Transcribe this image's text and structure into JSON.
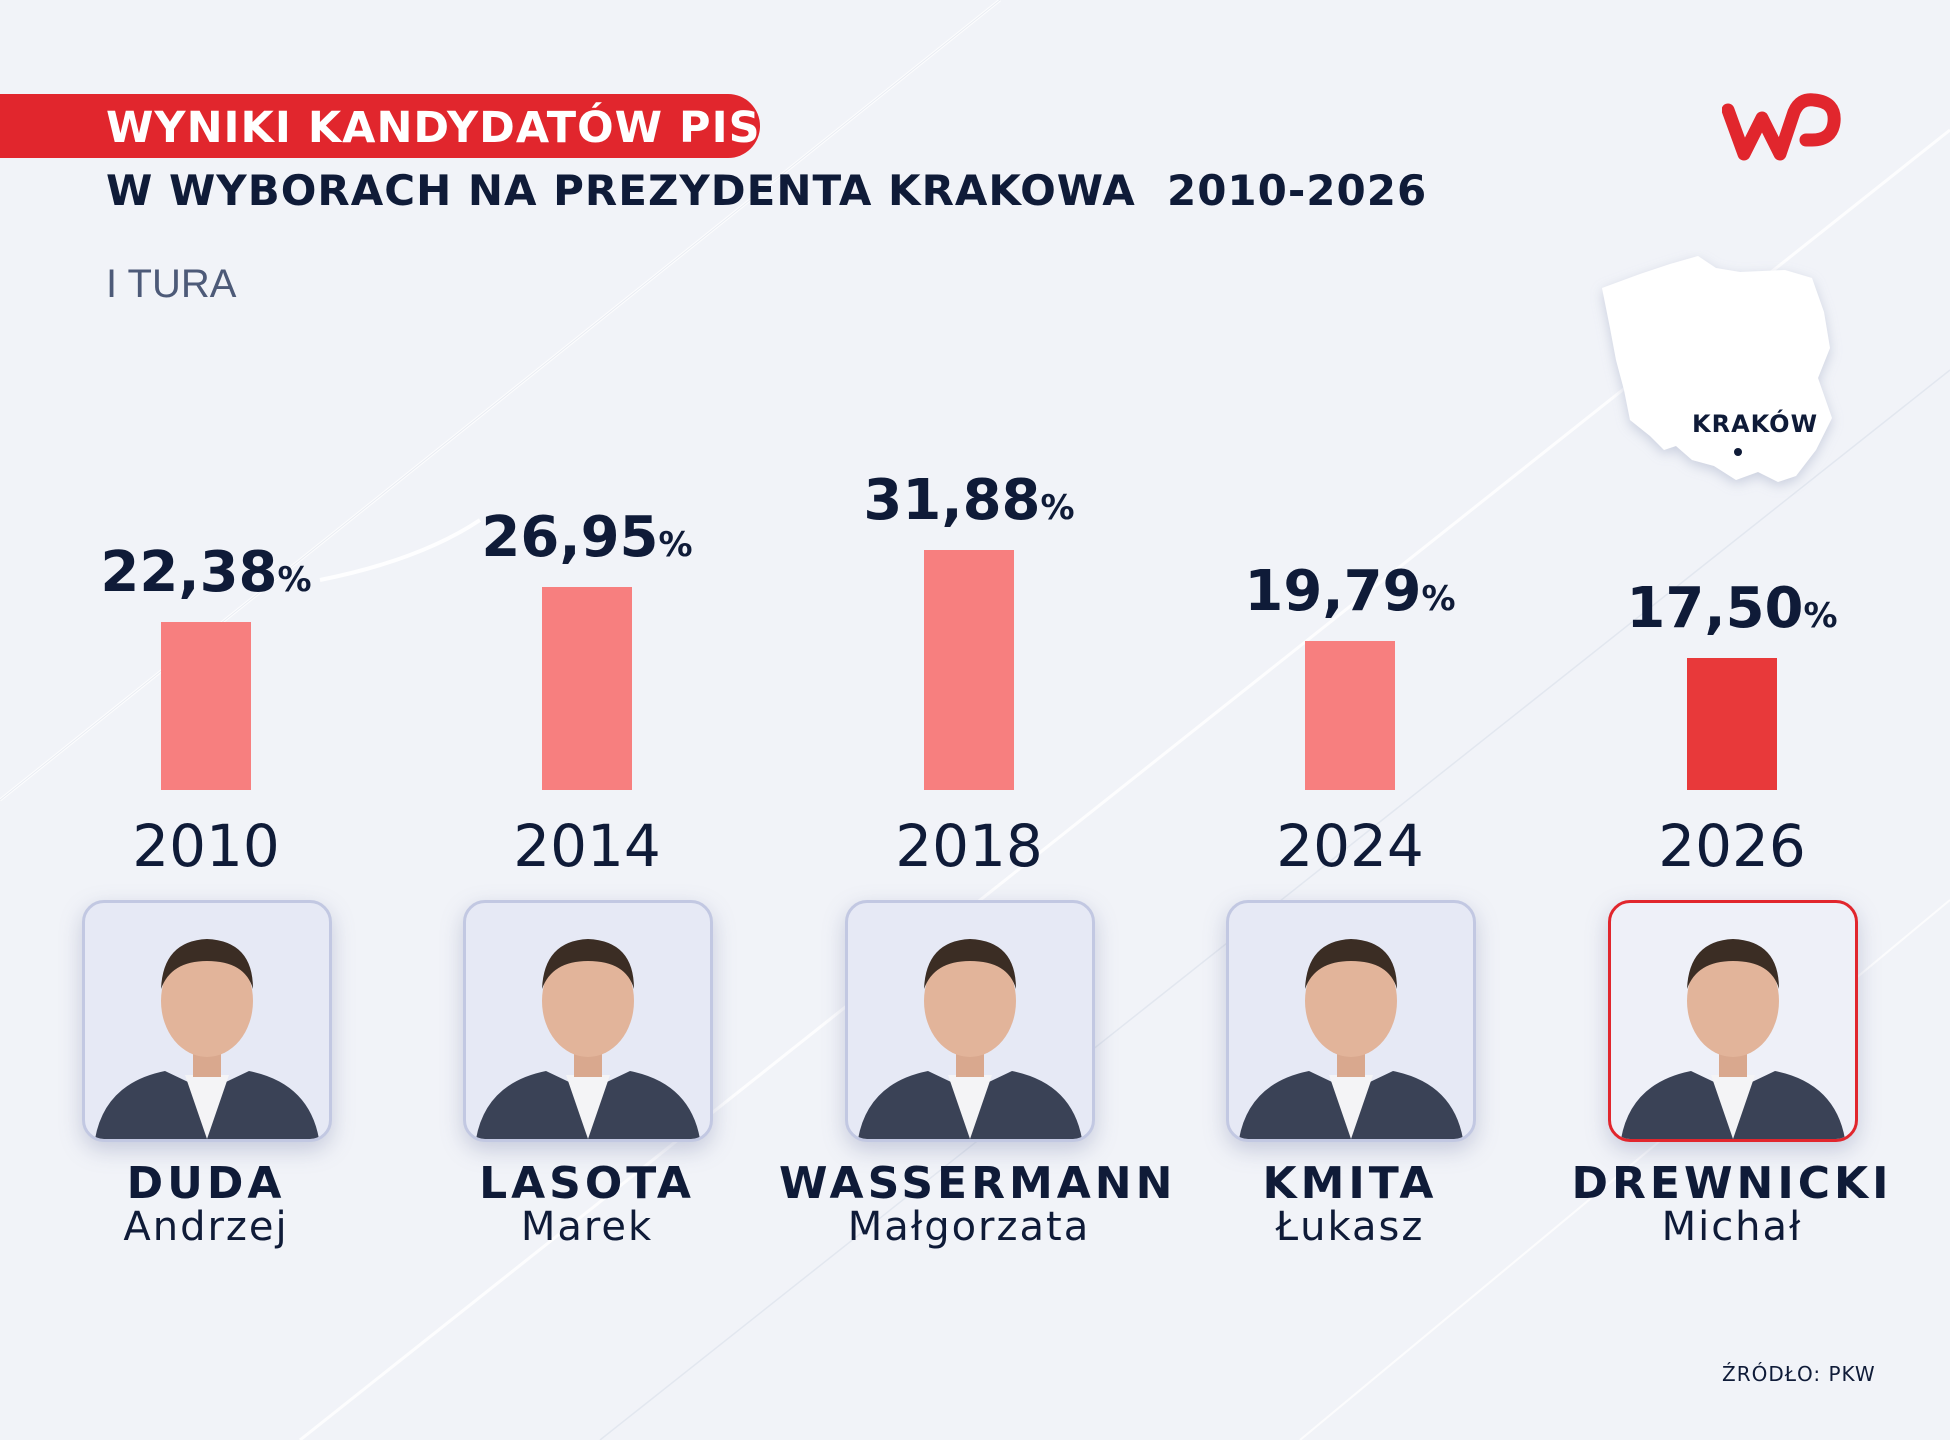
{
  "header": {
    "title_line1": "WYNIKI KANDYDATÓW PIS",
    "title_line2": "W WYBORACH NA PREZYDENTA KRAKOWA  2010-2026",
    "subtitle": "I TURA",
    "logo": "wp-logo-icon",
    "brand_color": "#e1262d"
  },
  "map": {
    "icon": "poland-map-icon",
    "label": "KRAKÓW"
  },
  "chart_data": {
    "type": "bar",
    "categories": [
      "2010",
      "2014",
      "2018",
      "2024",
      "2026"
    ],
    "values": [
      22.38,
      26.95,
      31.88,
      19.79,
      17.5
    ],
    "value_labels": [
      "22,38",
      "26,95",
      "31,88",
      "19,79",
      "17,50"
    ],
    "unit": "%",
    "highlight_index": 4,
    "colors": {
      "default": "#f77f7f",
      "highlight": "#e8393a"
    },
    "ylim": [
      0,
      31.88
    ]
  },
  "candidates": [
    {
      "surname": "DUDA",
      "first_name": "Andrzej",
      "photo_icon": "candidate-photo-icon"
    },
    {
      "surname": "LASOTA",
      "first_name": "Marek",
      "photo_icon": "candidate-photo-icon"
    },
    {
      "surname": "WASSERMANN",
      "first_name": "Małgorzata",
      "photo_icon": "candidate-photo-icon"
    },
    {
      "surname": "KMITA",
      "first_name": "Łukasz",
      "photo_icon": "candidate-photo-icon"
    },
    {
      "surname": "DREWNICKI",
      "first_name": "Michał",
      "photo_icon": "candidate-photo-icon"
    }
  ],
  "footer": {
    "source": "ŹRÓDŁO: PKW"
  }
}
